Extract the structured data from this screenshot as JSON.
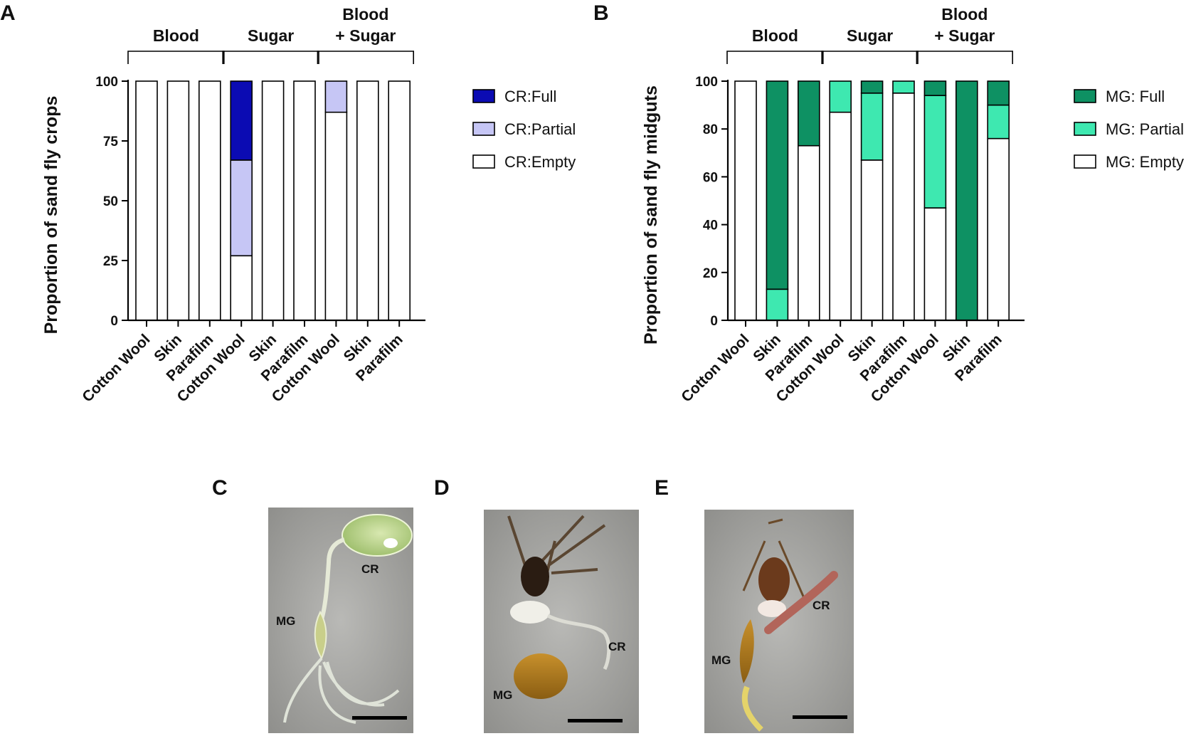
{
  "panels": {
    "A": "A",
    "B": "B",
    "C": "C",
    "D": "D",
    "E": "E"
  },
  "chart_data": [
    {
      "type": "bar",
      "stacked": true,
      "panel": "A",
      "ylabel": "Proportion of sand fly crops",
      "ylim": [
        0,
        100
      ],
      "yticks": [
        0,
        25,
        50,
        75,
        100
      ],
      "groups": [
        {
          "label_lines": [
            "Blood"
          ],
          "span": [
            0,
            2
          ]
        },
        {
          "label_lines": [
            "Sugar"
          ],
          "span": [
            3,
            5
          ]
        },
        {
          "label_lines": [
            "Blood",
            "+ Sugar"
          ],
          "span": [
            6,
            8
          ]
        }
      ],
      "categories": [
        "Cotton Wool",
        "Skin",
        "Parafilm",
        "Cotton Wool",
        "Skin",
        "Parafilm",
        "Cotton Wool",
        "Skin",
        "Parafilm"
      ],
      "series": [
        {
          "name": "CR:Empty",
          "color": "#ffffff",
          "values": [
            100,
            100,
            100,
            27,
            100,
            100,
            87,
            100,
            100
          ]
        },
        {
          "name": "CR:Partial",
          "color": "#c6c6f5",
          "values": [
            0,
            0,
            0,
            40,
            0,
            0,
            13,
            0,
            0
          ]
        },
        {
          "name": "CR:Full",
          "color": "#0b0bb3",
          "values": [
            0,
            0,
            0,
            33,
            0,
            0,
            0,
            0,
            0
          ]
        }
      ],
      "legend": [
        {
          "name": "CR:Full",
          "color": "#0b0bb3"
        },
        {
          "name": "CR:Partial",
          "color": "#c6c6f5"
        },
        {
          "name": "CR:Empty",
          "color": "#ffffff"
        }
      ],
      "legend_position": "right"
    },
    {
      "type": "bar",
      "stacked": true,
      "panel": "B",
      "ylabel": "Proportion of sand fly midguts",
      "ylim": [
        0,
        100
      ],
      "yticks": [
        0,
        20,
        40,
        60,
        80,
        100
      ],
      "groups": [
        {
          "label_lines": [
            "Blood"
          ],
          "span": [
            0,
            2
          ]
        },
        {
          "label_lines": [
            "Sugar"
          ],
          "span": [
            3,
            5
          ]
        },
        {
          "label_lines": [
            "Blood",
            "+ Sugar"
          ],
          "span": [
            6,
            8
          ]
        }
      ],
      "categories": [
        "Cotton Wool",
        "Skin",
        "Parafilm",
        "Cotton Wool",
        "Skin",
        "Parafilm",
        "Cotton Wool",
        "Skin",
        "Parafilm"
      ],
      "series": [
        {
          "name": "MG: Empty",
          "color": "#ffffff",
          "values": [
            100,
            0,
            73,
            87,
            67,
            95,
            47,
            0,
            76
          ]
        },
        {
          "name": "MG: Partial",
          "color": "#3ee8b0",
          "values": [
            0,
            13,
            0,
            13,
            28,
            5,
            47,
            0,
            14
          ]
        },
        {
          "name": "MG: Full",
          "color": "#0e9163",
          "values": [
            0,
            87,
            27,
            0,
            5,
            0,
            6,
            100,
            10
          ]
        }
      ],
      "legend": [
        {
          "name": "MG: Full",
          "color": "#0e9163"
        },
        {
          "name": "MG: Partial",
          "color": "#3ee8b0"
        },
        {
          "name": "MG: Empty",
          "color": "#ffffff"
        }
      ],
      "legend_position": "right"
    }
  ],
  "micrographs": [
    {
      "panel": "C",
      "labels": [
        "CR",
        "MG"
      ]
    },
    {
      "panel": "D",
      "labels": [
        "CR",
        "MG"
      ]
    },
    {
      "panel": "E",
      "labels": [
        "CR",
        "MG"
      ]
    }
  ]
}
